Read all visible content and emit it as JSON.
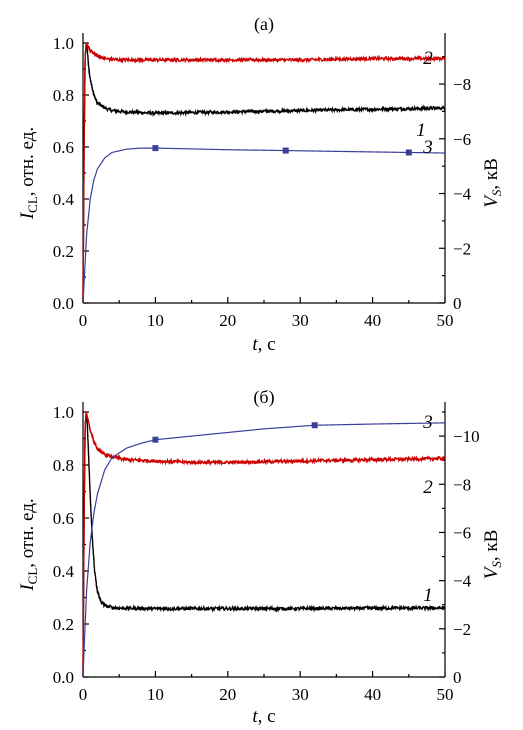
{
  "chart_data": [
    {
      "type": "line",
      "panel_label": "(а)",
      "xlabel": {
        "var": "t",
        "rest": ", с"
      },
      "ylabel_left": {
        "var": "I",
        "sub": "CL",
        "rest": ", отн. ед."
      },
      "ylabel_right": {
        "var": "V",
        "sub": "S",
        "rest": ", кВ"
      },
      "xlim": [
        0,
        50
      ],
      "ylim_left": [
        0,
        1.0
      ],
      "ylim_right": [
        0,
        9.5
      ],
      "x_ticks": [
        "0",
        "10",
        "20",
        "30",
        "40",
        "50"
      ],
      "y_left_ticks": [
        "0.0",
        "0.2",
        "0.4",
        "0.6",
        "0.8",
        "1.0"
      ],
      "y_right_ticks": [
        "0",
        "−2",
        "−4",
        "−6",
        "−8"
      ],
      "series": [
        {
          "name": "1",
          "axis": "left",
          "color": "#000000",
          "x": [
            0,
            0.15,
            0.3,
            0.45,
            0.6,
            0.8,
            1.0,
            1.5,
            2,
            3,
            4,
            6,
            10,
            20,
            30,
            40,
            50
          ],
          "y": [
            0.0,
            0.6,
            0.95,
            1.0,
            0.97,
            0.9,
            0.86,
            0.8,
            0.77,
            0.75,
            0.74,
            0.735,
            0.73,
            0.735,
            0.74,
            0.745,
            0.75
          ]
        },
        {
          "name": "2",
          "axis": "left",
          "color": "#cc0000",
          "x": [
            0,
            0.15,
            0.3,
            0.45,
            0.7,
            1.0,
            2,
            3,
            5,
            10,
            20,
            30,
            40,
            50
          ],
          "y": [
            0.0,
            0.6,
            0.95,
            1.0,
            0.99,
            0.97,
            0.95,
            0.94,
            0.935,
            0.935,
            0.935,
            0.935,
            0.94,
            0.94
          ]
        },
        {
          "name": "3",
          "axis": "right",
          "color": "#3a3f99",
          "x": [
            0,
            0.2,
            0.5,
            1,
            1.5,
            2,
            3,
            4,
            6,
            8,
            10,
            15,
            20,
            28,
            35,
            45,
            50
          ],
          "y": [
            0.0,
            1.0,
            2.5,
            3.8,
            4.5,
            4.9,
            5.3,
            5.5,
            5.62,
            5.66,
            5.66,
            5.63,
            5.6,
            5.57,
            5.54,
            5.5,
            5.48
          ],
          "markers_x": [
            10,
            28,
            45
          ],
          "markers_y": [
            5.66,
            5.57,
            5.5
          ]
        }
      ]
    },
    {
      "type": "line",
      "panel_label": "(б)",
      "xlabel": {
        "var": "t",
        "rest": ", с"
      },
      "ylabel_left": {
        "var": "I",
        "sub": "CL",
        "rest": ", отн. ед."
      },
      "ylabel_right": {
        "var": "V",
        "sub": "S",
        "rest": ", кВ"
      },
      "xlim": [
        0,
        50
      ],
      "ylim_left": [
        0,
        1.0
      ],
      "ylim_right": [
        0,
        11.0
      ],
      "x_ticks": [
        "0",
        "10",
        "20",
        "30",
        "40",
        "50"
      ],
      "y_left_ticks": [
        "0.0",
        "0.2",
        "0.4",
        "0.6",
        "0.8",
        "1.0"
      ],
      "y_right_ticks": [
        "0",
        "−2",
        "−4",
        "−6",
        "−8",
        "−10"
      ],
      "series": [
        {
          "name": "1",
          "axis": "left",
          "color": "#000000",
          "x": [
            0,
            0.15,
            0.3,
            0.45,
            0.6,
            0.8,
            1.0,
            1.3,
            1.6,
            2,
            2.5,
            3,
            4,
            5,
            10,
            20,
            30,
            40,
            50
          ],
          "y": [
            0.0,
            0.6,
            0.95,
            1.0,
            0.95,
            0.82,
            0.68,
            0.52,
            0.4,
            0.32,
            0.285,
            0.27,
            0.262,
            0.26,
            0.258,
            0.258,
            0.258,
            0.26,
            0.26
          ]
        },
        {
          "name": "2",
          "axis": "left",
          "color": "#cc0000",
          "x": [
            0,
            0.15,
            0.3,
            0.45,
            0.7,
            1.0,
            1.5,
            2,
            3,
            4,
            6,
            10,
            15,
            20,
            30,
            40,
            50
          ],
          "y": [
            0.0,
            0.6,
            0.95,
            1.0,
            0.97,
            0.93,
            0.89,
            0.86,
            0.84,
            0.83,
            0.82,
            0.815,
            0.81,
            0.81,
            0.815,
            0.82,
            0.825
          ]
        },
        {
          "name": "3",
          "axis": "right",
          "color": "#3a3f99",
          "x": [
            0,
            0.2,
            0.5,
            1,
            1.5,
            2,
            3,
            4,
            6,
            8,
            10,
            15,
            20,
            25,
            32,
            40,
            50
          ],
          "y": [
            0.0,
            1.5,
            3.6,
            5.6,
            6.8,
            7.6,
            8.6,
            9.1,
            9.5,
            9.7,
            9.85,
            10.0,
            10.15,
            10.3,
            10.45,
            10.5,
            10.55
          ],
          "markers_x": [
            10,
            32
          ],
          "markers_y": [
            9.85,
            10.45
          ]
        }
      ]
    }
  ]
}
